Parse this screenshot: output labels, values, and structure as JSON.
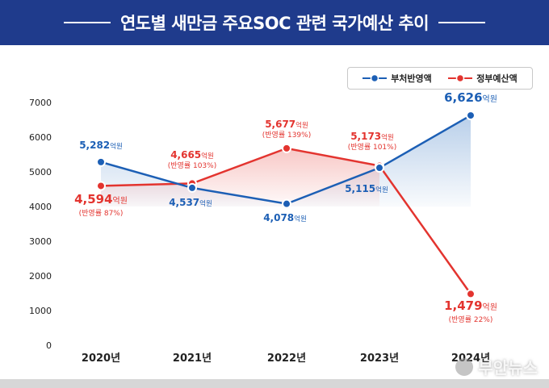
{
  "header": {
    "title": "연도별 새만금 주요SOC 관련 국가예산 추이"
  },
  "legend": {
    "series1": "부처반영액",
    "series2": "정부예산액"
  },
  "colors": {
    "header_bg": "#1f3b8c",
    "blue": "#1c5fb5",
    "red": "#e3342f",
    "blue_fill": "#7fa8d8",
    "red_fill": "#f3a3a0"
  },
  "watermark": {
    "text": "부안뉴스"
  },
  "chart_data": {
    "type": "line",
    "x": [
      "2020년",
      "2021년",
      "2022년",
      "2023년",
      "2024년"
    ],
    "ylim": [
      0,
      7000
    ],
    "yticks": [
      0,
      1000,
      2000,
      3000,
      4000,
      5000,
      6000,
      7000
    ],
    "grid": false,
    "legend_position": "top-right",
    "series": [
      {
        "name": "부처반영액",
        "values": [
          5282,
          4537,
          4078,
          5115,
          6626
        ],
        "labels": [
          "5,282",
          "4,537",
          "4,078",
          "5,115",
          "6,626"
        ],
        "unit": "억원"
      },
      {
        "name": "정부예산액",
        "values": [
          4594,
          4665,
          5677,
          5173,
          1479
        ],
        "labels": [
          "4,594",
          "4,665",
          "5,677",
          "5,173",
          "1,479"
        ],
        "unit": "억원",
        "ratios": [
          "(반영률 87%)",
          "(반영률 103%)",
          "(반영률 139%)",
          "(반영률 101%)",
          "(반영률 22%)"
        ]
      }
    ]
  }
}
